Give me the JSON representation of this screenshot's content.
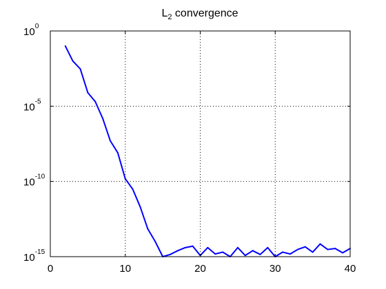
{
  "chart_data": {
    "type": "line",
    "title": {
      "main": "L",
      "subscript": "2",
      "rest": " convergence"
    },
    "xlabel": "",
    "ylabel": "",
    "xlim": [
      0,
      40
    ],
    "ylim": [
      1e-15,
      1
    ],
    "yscale": "log",
    "grid": true,
    "legend": "none",
    "x_ticks": [
      0,
      10,
      20,
      30,
      40
    ],
    "x_tick_labels": [
      "0",
      "10",
      "20",
      "30",
      "40"
    ],
    "y_ticks": [
      1e-15,
      1e-10,
      1e-05,
      1
    ],
    "y_tick_labels": [
      {
        "base": "10",
        "exp": "-15"
      },
      {
        "base": "10",
        "exp": "-10"
      },
      {
        "base": "10",
        "exp": "-5"
      },
      {
        "base": "10",
        "exp": "0"
      }
    ],
    "line_color": "#0000ff",
    "series": [
      {
        "x": [
          2,
          3,
          4,
          5,
          6,
          7,
          8,
          9,
          10,
          11,
          12,
          13,
          14,
          15,
          16,
          17,
          18,
          19,
          20,
          21,
          22,
          23,
          24,
          25,
          26,
          27,
          28,
          29,
          30,
          31,
          32,
          33,
          34,
          35,
          36,
          37,
          38,
          39,
          40
        ],
        "y": [
          0.1,
          0.01,
          0.003,
          8e-05,
          2e-05,
          1.5e-06,
          5e-08,
          8e-09,
          1.5e-10,
          3e-11,
          2e-12,
          7e-14,
          1e-14,
          1e-15,
          1.4e-15,
          2.5e-15,
          4e-15,
          5e-15,
          1.2e-15,
          4e-15,
          1.5e-15,
          2e-15,
          1e-15,
          4e-15,
          1.2e-15,
          2.5e-15,
          1.4e-15,
          4e-15,
          1e-15,
          2e-15,
          1.5e-15,
          3e-15,
          4.5e-15,
          2e-15,
          7e-15,
          3e-15,
          3.5e-15,
          1.8e-15,
          3.5e-15
        ]
      }
    ]
  }
}
